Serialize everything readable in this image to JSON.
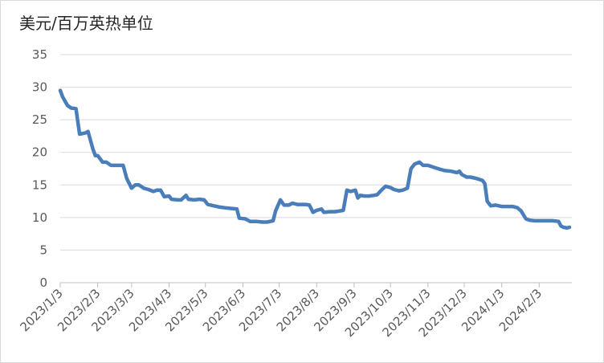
{
  "chart_data": {
    "type": "line",
    "title": "美元/百万英热单位",
    "x": [
      "2023/1/3",
      "2023/1/5",
      "2023/1/9",
      "2023/1/12",
      "2023/1/16",
      "2023/1/19",
      "2023/1/24",
      "2023/1/26",
      "2023/1/30",
      "2023/2/1",
      "2023/2/3",
      "2023/2/7",
      "2023/2/10",
      "2023/2/14",
      "2023/2/20",
      "2023/2/24",
      "2023/2/27",
      "2023/3/3",
      "2023/3/6",
      "2023/3/9",
      "2023/3/13",
      "2023/3/17",
      "2023/3/21",
      "2023/3/24",
      "2023/3/27",
      "2023/3/30",
      "2023/4/3",
      "2023/4/5",
      "2023/4/10",
      "2023/4/13",
      "2023/4/17",
      "2023/4/19",
      "2023/4/24",
      "2023/4/28",
      "2023/5/2",
      "2023/5/5",
      "2023/5/10",
      "2023/5/15",
      "2023/5/19",
      "2023/5/24",
      "2023/5/29",
      "2023/5/31",
      "2023/6/5",
      "2023/6/9",
      "2023/6/14",
      "2023/6/19",
      "2023/6/23",
      "2023/6/28",
      "2023/6/30",
      "2023/7/4",
      "2023/7/7",
      "2023/7/11",
      "2023/7/14",
      "2023/7/18",
      "2023/7/21",
      "2023/7/25",
      "2023/7/28",
      "2023/7/31",
      "2023/8/3",
      "2023/8/7",
      "2023/8/9",
      "2023/8/14",
      "2023/8/18",
      "2023/8/22",
      "2023/8/25",
      "2023/8/28",
      "2023/8/31",
      "2023/9/4",
      "2023/9/6",
      "2023/9/8",
      "2023/9/12",
      "2023/9/15",
      "2023/9/19",
      "2023/9/22",
      "2023/9/26",
      "2023/9/29",
      "2023/10/3",
      "2023/10/6",
      "2023/10/10",
      "2023/10/13",
      "2023/10/17",
      "2023/10/20",
      "2023/10/23",
      "2023/10/27",
      "2023/10/30",
      "2023/11/3",
      "2023/11/8",
      "2023/11/13",
      "2023/11/17",
      "2023/11/22",
      "2023/11/27",
      "2023/11/29",
      "2023/12/1",
      "2023/12/5",
      "2023/12/8",
      "2023/12/13",
      "2023/12/18",
      "2023/12/20",
      "2023/12/22",
      "2023/12/25",
      "2023/12/29",
      "2024/1/3",
      "2024/1/8",
      "2024/1/12",
      "2024/1/16",
      "2024/1/19",
      "2024/1/23",
      "2024/1/26",
      "2024/1/30",
      "2024/2/2",
      "2024/2/6",
      "2024/2/9",
      "2024/2/14",
      "2024/2/19",
      "2024/2/21",
      "2024/2/23",
      "2024/2/26",
      "2024/2/28"
    ],
    "series": [
      {
        "color": "#4a7ebb",
        "values": [
          29.5,
          28.5,
          27.2,
          26.8,
          26.7,
          22.8,
          23,
          23.2,
          20.5,
          19.5,
          19.5,
          18.5,
          18.5,
          18,
          18,
          18,
          16,
          14.5,
          15,
          15,
          14.5,
          14.3,
          14,
          14.2,
          14.2,
          13.2,
          13.3,
          12.8,
          12.7,
          12.7,
          13.4,
          12.8,
          12.7,
          12.8,
          12.7,
          12,
          11.8,
          11.6,
          11.5,
          11.4,
          11.3,
          9.9,
          9.8,
          9.4,
          9.4,
          9.3,
          9.3,
          9.5,
          11,
          12.7,
          11.9,
          11.9,
          12.2,
          12,
          12,
          12,
          11.9,
          10.8,
          11.1,
          11.3,
          10.8,
          10.9,
          10.9,
          11,
          11.1,
          14.2,
          14,
          14.2,
          13,
          13.4,
          13.3,
          13.3,
          13.4,
          13.5,
          14.3,
          14.8,
          14.6,
          14.3,
          14.1,
          14.2,
          14.5,
          17.5,
          18.2,
          18.5,
          18,
          18,
          17.7,
          17.4,
          17.2,
          17.1,
          16.9,
          17.1,
          16.6,
          16.2,
          16.2,
          16,
          15.7,
          15.2,
          12.5,
          11.8,
          11.9,
          11.7,
          11.7,
          11.7,
          11.5,
          11,
          9.8,
          9.6,
          9.5,
          9.5,
          9.5,
          9.5,
          9.5,
          9.4,
          8.7,
          8.5,
          8.4,
          8.5
        ]
      }
    ],
    "xlim": [
      "2023/1/3",
      "2024/3/1"
    ],
    "xticks": [
      "2023/1/3",
      "2023/2/3",
      "2023/3/3",
      "2023/4/3",
      "2023/5/3",
      "2023/6/3",
      "2023/7/3",
      "2023/8/3",
      "2023/9/3",
      "2023/10/3",
      "2023/11/3",
      "2023/12/3",
      "2024/1/3",
      "2024/2/3"
    ],
    "ylim": [
      0,
      35
    ],
    "yticks": [
      0,
      5,
      10,
      15,
      20,
      25,
      30,
      35
    ],
    "grid": true
  }
}
